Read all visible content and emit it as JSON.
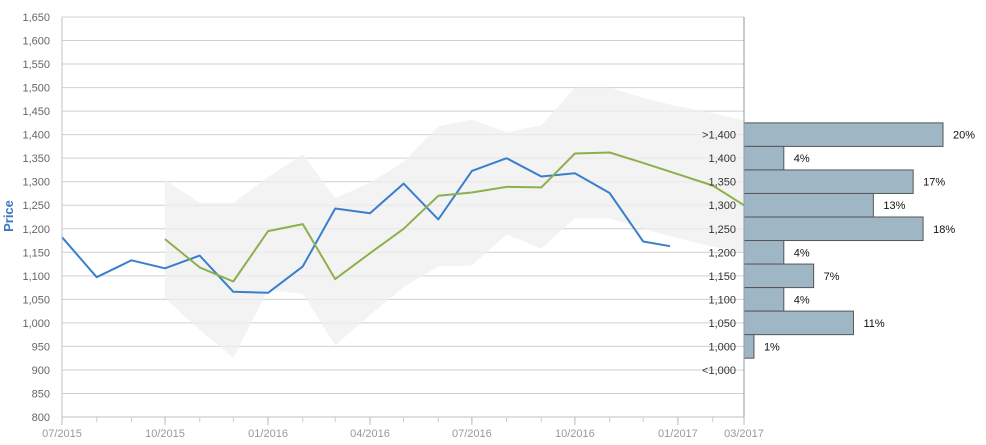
{
  "chart_data": {
    "type": "line",
    "ylabel": "Price",
    "xlabel": "",
    "ylim": [
      800,
      1650
    ],
    "y_ticks": [
      800,
      850,
      900,
      950,
      1000,
      1050,
      1100,
      1150,
      1200,
      1250,
      1300,
      1350,
      1400,
      1450,
      1500,
      1550,
      1600,
      1650
    ],
    "y_tick_labels": [
      "800",
      "850",
      "900",
      "950",
      "1,000",
      "1,050",
      "1,100",
      "1,150",
      "1,200",
      "1,250",
      "1,300",
      "1,350",
      "1,400",
      "1,450",
      "1,500",
      "1,550",
      "1,600",
      "1,650"
    ],
    "x_range": [
      "2015-07",
      "2017-03"
    ],
    "x_tick_labels": [
      "07/2015",
      "10/2015",
      "01/2016",
      "04/2016",
      "07/2016",
      "10/2016",
      "01/2017",
      "03/2017"
    ],
    "x_tick_dates": [
      "2015-07",
      "2015-10",
      "2016-01",
      "2016-04",
      "2016-07",
      "2016-10",
      "2017-01",
      "2017-03"
    ],
    "grid": true,
    "series": [
      {
        "color": "#3a7fce",
        "x": [
          "2015-07",
          "2015-08",
          "2015-09",
          "2015-10",
          "2015-11",
          "2015-12",
          "2016-01",
          "2016-02",
          "2016-03",
          "2016-04",
          "2016-05",
          "2016-06",
          "2016-07",
          "2016-08",
          "2016-09",
          "2016-10",
          "2016-11",
          "2016-12",
          "2016-12-25"
        ],
        "values": [
          1182,
          1097,
          1133,
          1116,
          1143,
          1066,
          1064,
          1120,
          1243,
          1233,
          1296,
          1220,
          1323,
          1350,
          1311,
          1318,
          1276,
          1173,
          1163
        ]
      },
      {
        "color": "#8db04c",
        "x": [
          "2015-10",
          "2015-11",
          "2015-12",
          "2016-01",
          "2016-02",
          "2016-03",
          "2016-04",
          "2016-05",
          "2016-06",
          "2016-07",
          "2016-08",
          "2016-09",
          "2016-10",
          "2016-11",
          "2016-12",
          "2017-01",
          "2017-02",
          "2017-03"
        ],
        "values": [
          1178,
          1118,
          1088,
          1195,
          1210,
          1093,
          1148,
          1200,
          1270,
          1277,
          1289,
          1288,
          1360,
          1362,
          1340,
          1316,
          1292,
          1250
        ]
      }
    ],
    "band": {
      "color": "#efefef",
      "x": [
        "2015-10",
        "2015-11",
        "2015-12",
        "2016-01",
        "2016-02",
        "2016-03",
        "2016-04",
        "2016-05",
        "2016-06",
        "2016-07",
        "2016-08",
        "2016-09",
        "2016-10",
        "2016-11",
        "2016-12",
        "2017-01",
        "2017-02",
        "2017-03"
      ],
      "upper": [
        1304,
        1255,
        1255,
        1310,
        1358,
        1265,
        1298,
        1342,
        1418,
        1432,
        1405,
        1420,
        1500,
        1500,
        1478,
        1460,
        1446,
        1430
      ],
      "lower": [
        1052,
        985,
        926,
        1070,
        1062,
        952,
        1017,
        1076,
        1120,
        1122,
        1188,
        1158,
        1222,
        1222,
        1200,
        1180,
        1162,
        1150
      ]
    },
    "histogram": {
      "color": "#9fb6c5",
      "border": "#555555",
      "bins": [
        {
          "label": ">1,400",
          "percent": 20,
          "text": "20%"
        },
        {
          "label": "1,400",
          "percent": 4,
          "text": "4%"
        },
        {
          "label": "1,350",
          "percent": 17,
          "text": "17%"
        },
        {
          "label": "1,300",
          "percent": 13,
          "text": "13%"
        },
        {
          "label": "1,250",
          "percent": 18,
          "text": "18%"
        },
        {
          "label": "1,200",
          "percent": 4,
          "text": "4%"
        },
        {
          "label": "1,150",
          "percent": 7,
          "text": "7%"
        },
        {
          "label": "1,100",
          "percent": 4,
          "text": "4%"
        },
        {
          "label": "1,050",
          "percent": 11,
          "text": "11%"
        },
        {
          "label": "1,000",
          "percent": 1,
          "text": "1%"
        },
        {
          "label": "<1,000",
          "percent": 0,
          "text": ""
        }
      ],
      "top_value": 1425,
      "bin_size": 50
    }
  }
}
